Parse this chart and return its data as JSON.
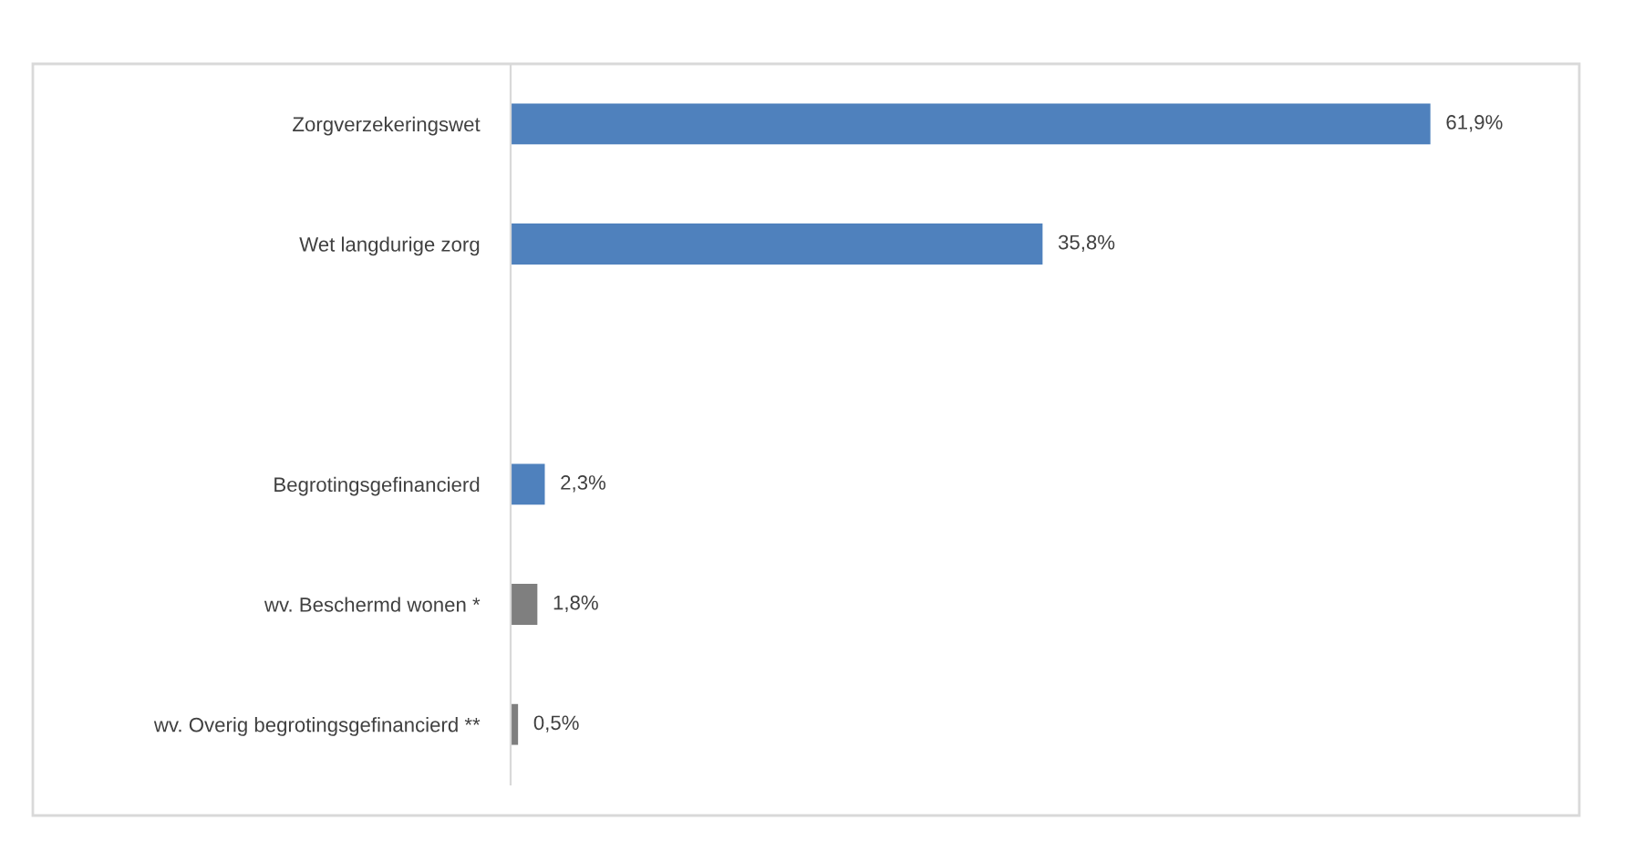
{
  "chart_data": {
    "type": "bar",
    "orientation": "horizontal",
    "categories": [
      "Zorgverzekeringswet",
      "Wet langdurige zorg",
      null,
      "Begrotingsgefinancierd",
      "wv. Beschermd wonen *",
      "wv. Overig begrotingsgefinancierd **"
    ],
    "values": [
      61.9,
      35.8,
      null,
      2.3,
      1.8,
      0.5
    ],
    "colors": [
      "#4f81bd",
      "#4f81bd",
      "#4f81bd",
      "#4f81bd",
      "#7f7f7f",
      "#7f7f7f"
    ],
    "value_labels": [
      "61,9%",
      "35,8%",
      null,
      "2,3%",
      "1,8%",
      "0,5%"
    ],
    "grid": false,
    "tick_labels": "y"
  }
}
